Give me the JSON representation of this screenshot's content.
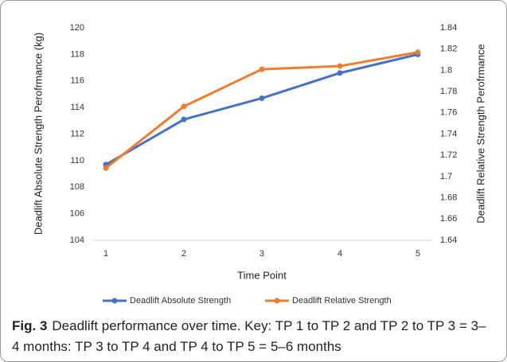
{
  "chart_data": {
    "type": "line",
    "x_label": "Time Point",
    "y_label": "Deadlift Absolute Strength Perofrmance (kg)",
    "y2_label": "Deadlift Relative Strength Perofrmance",
    "categories": [
      "1",
      "2",
      "3",
      "4",
      "5"
    ],
    "series": [
      {
        "name": "Deadlift Absolute Strength",
        "color": "#4472c4",
        "values": [
          109.7,
          113.1,
          114.7,
          116.6,
          118.0
        ]
      },
      {
        "name": "Deadlift Relative Strength",
        "color": "#ed7d31",
        "axis": "y2",
        "values": [
          1.708,
          1.766,
          1.801,
          1.804,
          1.817
        ]
      }
    ],
    "ylim": [
      104,
      120
    ],
    "yticks": [
      104,
      106,
      108,
      110,
      112,
      114,
      116,
      118,
      120
    ],
    "y2lim": [
      1.64,
      1.84
    ],
    "y2ticks": [
      1.64,
      1.66,
      1.68,
      1.7,
      1.72,
      1.74,
      1.76,
      1.78,
      1.8,
      1.82,
      1.84
    ],
    "grid": false,
    "legend": "bottom"
  },
  "caption": {
    "label": "Fig. 3",
    "text": "Deadlift performance over time. Key: TP 1 to TP 2 and TP 2 to TP 3 = 3–4 months: TP 3 to TP 4 and TP 4 to TP 5 = 5–6 months"
  }
}
